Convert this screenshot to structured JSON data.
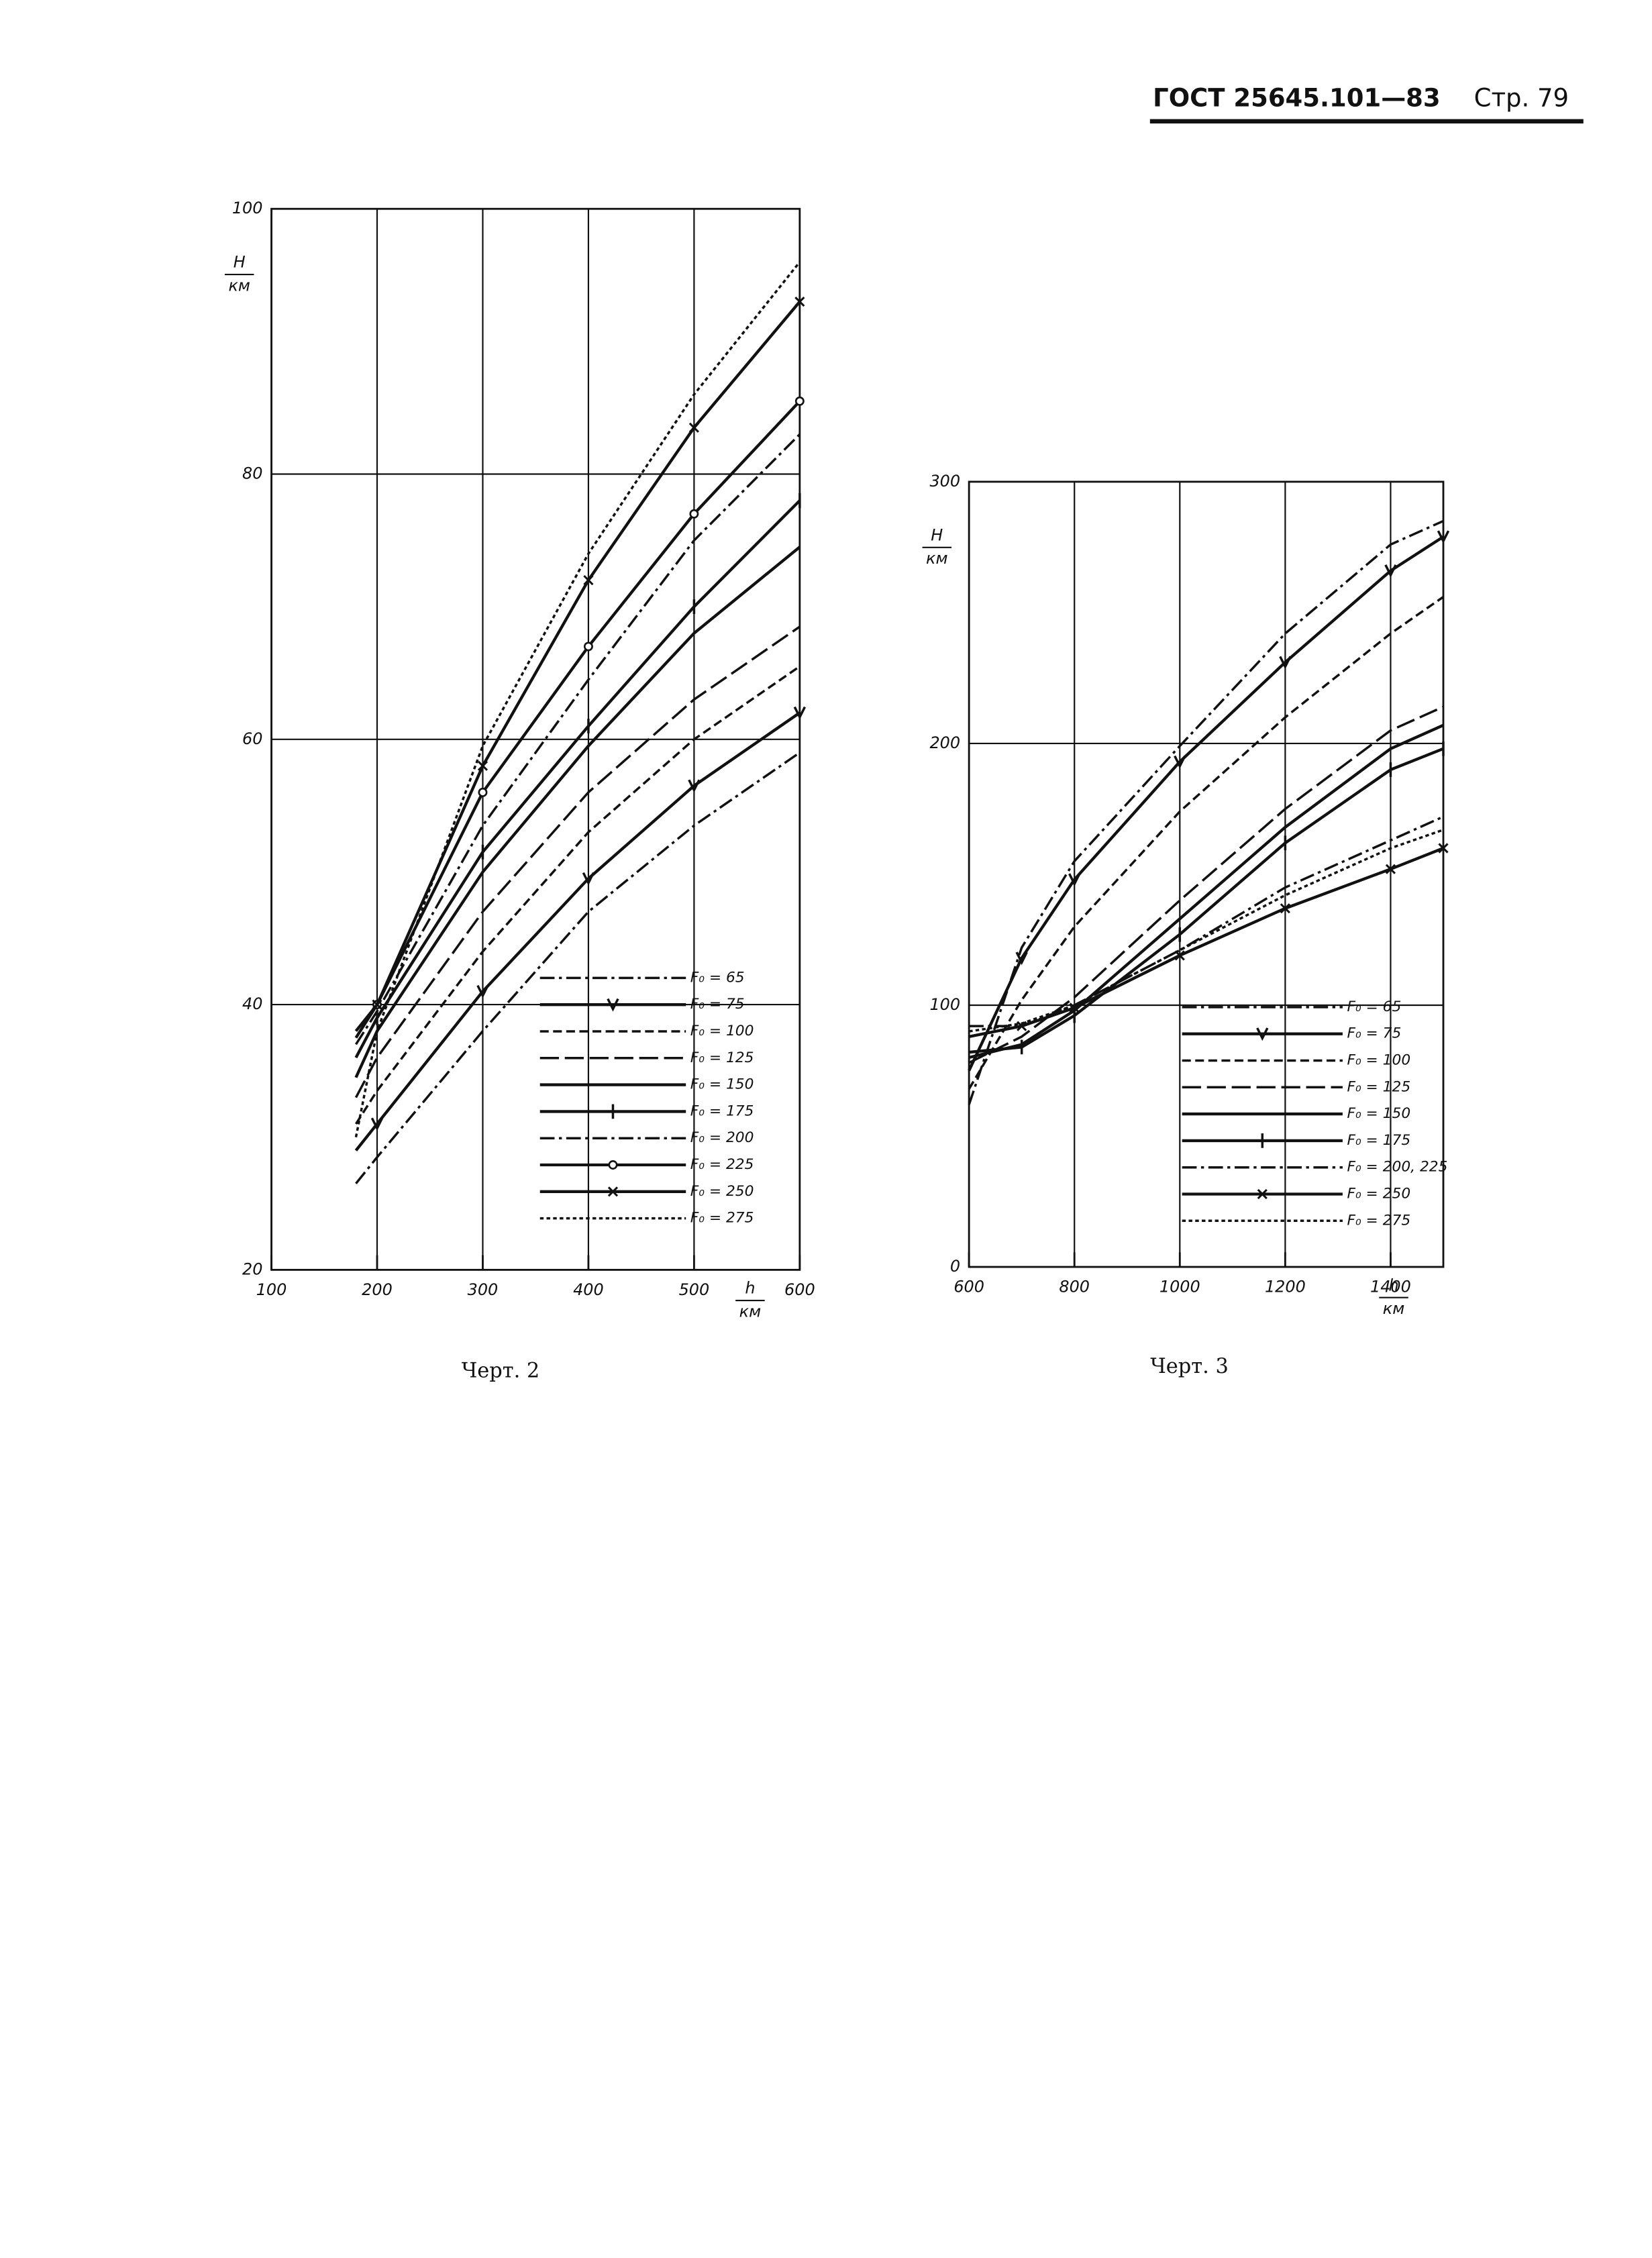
{
  "header": {
    "title": "ГОСТ 25645.101—83",
    "page": "Стр. 79"
  },
  "chart_data": [
    {
      "type": "line",
      "caption": "Черт. 2",
      "y_label": "H",
      "y_unit": "км",
      "x_label": "h",
      "x_unit": "км",
      "x": [
        180,
        200,
        300,
        400,
        500,
        600
      ],
      "xlim": [
        100,
        600
      ],
      "xticks": [
        100,
        200,
        300,
        400,
        500,
        600
      ],
      "ylim": [
        20,
        100
      ],
      "yticks": [
        20,
        40,
        60,
        80,
        100
      ],
      "grid": true,
      "legend": "lower right",
      "series": [
        {
          "name": "F₀ = 65",
          "color": "#111111",
          "style": "dash-dot",
          "values": [
            26.5,
            28.5,
            38,
            47,
            53.5,
            59
          ]
        },
        {
          "name": "F₀ = 75",
          "color": "#111111",
          "style": "solid",
          "marker": "v",
          "values": [
            29,
            31,
            41,
            49.5,
            56.5,
            62
          ]
        },
        {
          "name": "F₀ = 100",
          "color": "#111111",
          "style": "dash",
          "values": [
            31,
            33.5,
            44,
            53,
            60,
            65.5
          ]
        },
        {
          "name": "F₀ = 125",
          "color": "#111111",
          "style": "long-dash",
          "values": [
            33,
            36,
            47,
            56,
            63,
            68.5
          ]
        },
        {
          "name": "F₀ = 150",
          "color": "#111111",
          "style": "solid",
          "values": [
            34.5,
            38,
            50,
            59.5,
            68,
            74.5
          ]
        },
        {
          "name": "F₀ = 175",
          "color": "#111111",
          "style": "solid",
          "marker": "I",
          "values": [
            36,
            39,
            51.5,
            61,
            70,
            78
          ]
        },
        {
          "name": "F₀ = 200",
          "color": "#111111",
          "style": "dash-dot",
          "values": [
            37,
            39.5,
            53.5,
            64.5,
            75,
            83
          ]
        },
        {
          "name": "F₀ = 225",
          "color": "#111111",
          "style": "solid",
          "marker": "o",
          "values": [
            37.5,
            40,
            56,
            67,
            77,
            85.5
          ]
        },
        {
          "name": "F₀ = 250",
          "color": "#111111",
          "style": "solid",
          "marker": "x",
          "values": [
            38,
            40,
            58,
            72,
            83.5,
            93
          ]
        },
        {
          "name": "F₀ = 275",
          "color": "#111111",
          "style": "dot",
          "values": [
            30,
            38,
            59.5,
            74,
            86,
            96
          ]
        }
      ]
    },
    {
      "type": "line",
      "caption": "Черт. 3",
      "y_label": "H",
      "y_unit": "км",
      "x_label": "h",
      "x_unit": "км",
      "x": [
        600,
        700,
        800,
        1000,
        1200,
        1400,
        1500
      ],
      "xlim": [
        600,
        1500
      ],
      "xticks": [
        600,
        800,
        1000,
        1200,
        1400
      ],
      "ylim": [
        0,
        300
      ],
      "yticks": [
        0,
        100,
        200,
        300
      ],
      "grid": true,
      "legend": "lower right",
      "series": [
        {
          "name": "F₀ = 65",
          "color": "#111111",
          "style": "dash-dot",
          "values": [
            62,
            122,
            155,
            199,
            242,
            276,
            285
          ]
        },
        {
          "name": "F₀ = 75",
          "color": "#111111",
          "style": "solid",
          "marker": "v",
          "values": [
            75,
            118,
            148,
            193,
            231,
            266,
            279
          ]
        },
        {
          "name": "F₀ = 100",
          "color": "#111111",
          "style": "dash",
          "values": [
            68,
            102,
            130,
            174,
            210,
            242,
            256
          ]
        },
        {
          "name": "F₀ = 125",
          "color": "#111111",
          "style": "long-dash",
          "values": [
            78,
            88,
            103,
            140,
            175,
            205,
            214
          ]
        },
        {
          "name": "F₀ = 150",
          "color": "#111111",
          "style": "solid",
          "values": [
            80,
            85,
            98,
            133,
            168,
            198,
            207
          ]
        },
        {
          "name": "F₀ = 175",
          "color": "#111111",
          "style": "solid",
          "marker": "I",
          "values": [
            82,
            84,
            96,
            127,
            162,
            190,
            198
          ]
        },
        {
          "name": "F₀ = 200, 225",
          "color": "#111111",
          "style": "dash-dot",
          "values": [
            92,
            92,
            100,
            121,
            145,
            163,
            172
          ]
        },
        {
          "name": "F₀ = 250",
          "color": "#111111",
          "style": "solid",
          "marker": "x",
          "values": [
            88,
            92,
            99,
            119,
            137,
            152,
            160
          ]
        },
        {
          "name": "F₀ = 275",
          "color": "#111111",
          "style": "dot",
          "values": [
            90,
            93,
            100,
            121,
            142,
            160,
            167
          ]
        }
      ]
    }
  ]
}
